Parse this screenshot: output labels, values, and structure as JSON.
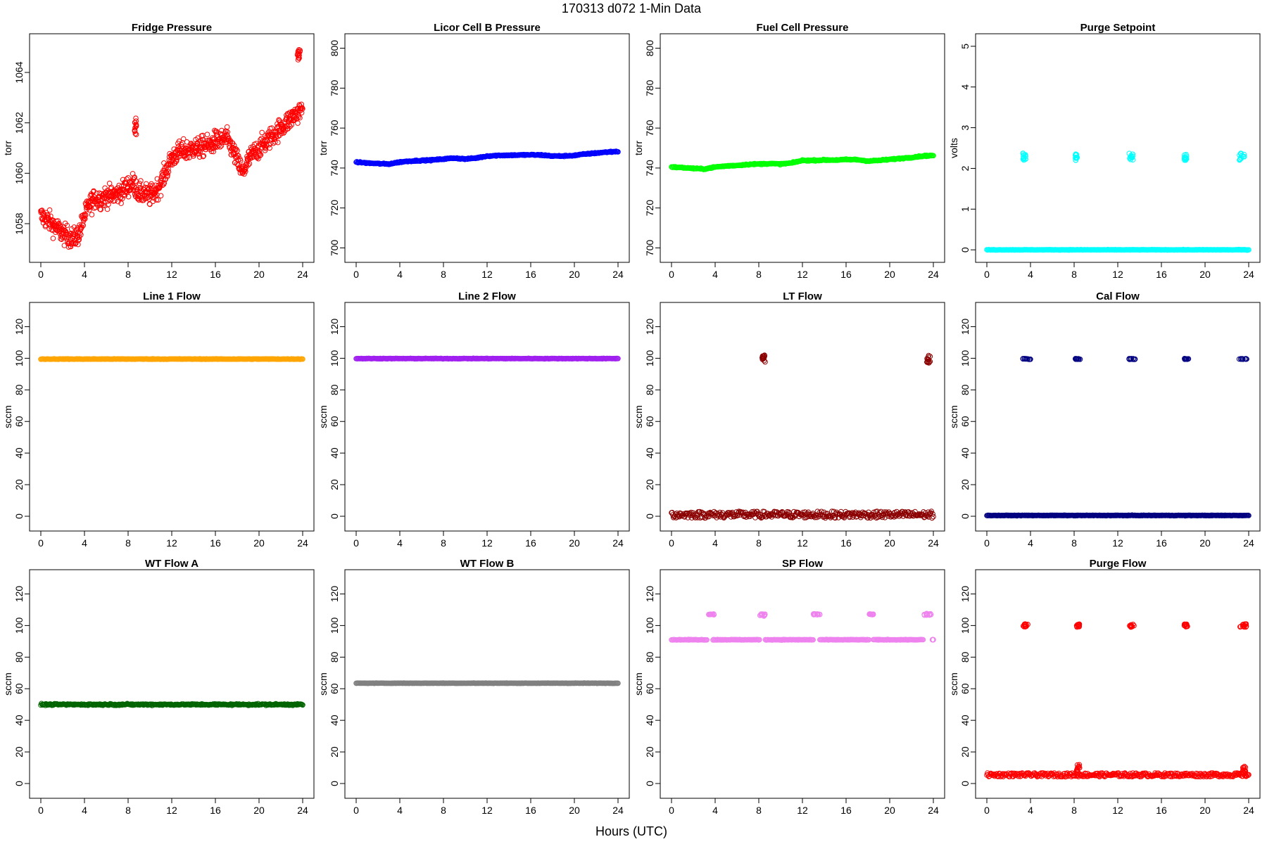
{
  "figure": {
    "title": "170313    d072    1-Min Data",
    "xlabel": "Hours (UTC)"
  },
  "chart_data": [
    {
      "type": "scatter",
      "title": "Fridge Pressure",
      "ylabel": "torr",
      "color": "#ff0000",
      "xlim": [
        0,
        24
      ],
      "ylim": [
        1056.8,
        1065.2
      ],
      "xticks": [
        0,
        4,
        8,
        12,
        16,
        20,
        24
      ],
      "yticks": [
        1058,
        1060,
        1062,
        1064
      ],
      "series": [
        {
          "style": "random-walk",
          "x": [
            0,
            0.5,
            1,
            1.5,
            2,
            2.5,
            3,
            3.5,
            4,
            4.5,
            5,
            5.5,
            6,
            6.5,
            7,
            7.5,
            8,
            8.5,
            9,
            9.5,
            10,
            10.5,
            11,
            11.5,
            12,
            12.5,
            13,
            13.5,
            14,
            14.5,
            15,
            15.5,
            16,
            16.5,
            17,
            17.5,
            18,
            18.5,
            19,
            19.5,
            20,
            20.5,
            21,
            21.5,
            22,
            22.5,
            23,
            23.5,
            24
          ],
          "y": [
            1058.3,
            1058.2,
            1058.0,
            1057.8,
            1057.6,
            1057.5,
            1057.4,
            1057.6,
            1058.3,
            1058.8,
            1059.0,
            1059.0,
            1059.1,
            1059.1,
            1059.2,
            1059.3,
            1059.5,
            1059.6,
            1059.2,
            1059.2,
            1059.1,
            1059.3,
            1059.6,
            1060.1,
            1060.6,
            1060.8,
            1060.9,
            1060.9,
            1061.0,
            1061.0,
            1061.1,
            1061.1,
            1061.3,
            1061.3,
            1061.4,
            1061.0,
            1060.5,
            1060.0,
            1060.5,
            1060.8,
            1061.0,
            1061.2,
            1061.4,
            1061.6,
            1061.8,
            1062.0,
            1062.2,
            1062.4,
            1062.5
          ],
          "spread": 0.7
        },
        {
          "style": "cluster",
          "x": [
            8.6,
            8.75
          ],
          "y": [
            1061.5,
            1062.2
          ]
        },
        {
          "style": "cluster",
          "x": [
            23.5,
            23.8
          ],
          "y": [
            1064.5,
            1064.9
          ]
        }
      ]
    },
    {
      "type": "scatter",
      "title": "Licor Cell B Pressure",
      "ylabel": "torr",
      "color": "#0000ff",
      "xlim": [
        0,
        24
      ],
      "ylim": [
        697,
        803
      ],
      "xticks": [
        0,
        4,
        8,
        12,
        16,
        20,
        24
      ],
      "yticks": [
        700,
        720,
        740,
        760,
        780,
        800
      ],
      "series": [
        {
          "style": "dense",
          "x": [
            0,
            1,
            2,
            3,
            4,
            5,
            6,
            7,
            8,
            9,
            10,
            11,
            12,
            13,
            14,
            15,
            16,
            17,
            18,
            19,
            20,
            21,
            22,
            23,
            24
          ],
          "y": [
            743,
            742.5,
            742.2,
            742.0,
            743.0,
            743.5,
            743.8,
            744.0,
            744.5,
            745.0,
            744.5,
            745.0,
            746.0,
            746.3,
            746.4,
            746.5,
            746.6,
            746.5,
            746.0,
            746.0,
            746.3,
            747.0,
            747.5,
            748.0,
            748.3
          ],
          "spread": 0.5
        }
      ]
    },
    {
      "type": "scatter",
      "title": "Fuel Cell Pressure",
      "ylabel": "torr",
      "color": "#00ff00",
      "xlim": [
        0,
        24
      ],
      "ylim": [
        697,
        803
      ],
      "xticks": [
        0,
        4,
        8,
        12,
        16,
        20,
        24
      ],
      "yticks": [
        700,
        720,
        740,
        760,
        780,
        800
      ],
      "series": [
        {
          "style": "dense",
          "x": [
            0,
            1,
            2,
            3,
            4,
            5,
            6,
            7,
            8,
            9,
            10,
            11,
            12,
            13,
            14,
            15,
            16,
            17,
            18,
            19,
            20,
            21,
            22,
            23,
            24
          ],
          "y": [
            740.5,
            740.2,
            739.8,
            739.5,
            740.5,
            741.0,
            741.3,
            741.8,
            742.0,
            742.2,
            742.0,
            742.5,
            743.8,
            743.8,
            744.0,
            744.0,
            744.2,
            744.2,
            743.5,
            743.8,
            744.3,
            744.8,
            745.3,
            746.0,
            746.3
          ],
          "spread": 0.5
        }
      ]
    },
    {
      "type": "scatter",
      "title": "Purge Setpoint",
      "ylabel": "volts",
      "color": "#00ffff",
      "xlim": [
        0,
        24
      ],
      "ylim": [
        -0.1,
        5.1
      ],
      "xticks": [
        0,
        4,
        8,
        12,
        16,
        20,
        24
      ],
      "yticks": [
        0,
        1,
        2,
        3,
        4,
        5
      ],
      "series": [
        {
          "style": "dense",
          "x": [
            0,
            24
          ],
          "y": [
            0,
            0
          ],
          "spread": 0.01
        },
        {
          "style": "cluster",
          "x": [
            3.3,
            3.6
          ],
          "y": [
            2.2,
            2.38
          ]
        },
        {
          "style": "cluster",
          "x": [
            8.1,
            8.3
          ],
          "y": [
            2.2,
            2.35
          ]
        },
        {
          "style": "cluster",
          "x": [
            13.0,
            13.4
          ],
          "y": [
            2.2,
            2.38
          ]
        },
        {
          "style": "cluster",
          "x": [
            18.1,
            18.3
          ],
          "y": [
            2.2,
            2.35
          ]
        },
        {
          "style": "cluster",
          "x": [
            23.1,
            23.6
          ],
          "y": [
            2.2,
            2.38
          ]
        }
      ]
    },
    {
      "type": "scatter",
      "title": "Line 1 Flow",
      "ylabel": "sccm",
      "color": "#ffa500",
      "xlim": [
        0,
        24
      ],
      "ylim": [
        -4,
        130
      ],
      "xticks": [
        0,
        4,
        8,
        12,
        16,
        20,
        24
      ],
      "yticks": [
        0,
        20,
        40,
        60,
        80,
        100,
        120
      ],
      "series": [
        {
          "style": "dense",
          "x": [
            0,
            24
          ],
          "y": [
            99.5,
            99.5
          ],
          "spread": 0.3
        }
      ]
    },
    {
      "type": "scatter",
      "title": "Line 2 Flow",
      "ylabel": "sccm",
      "color": "#a020f0",
      "xlim": [
        0,
        24
      ],
      "ylim": [
        -4,
        130
      ],
      "xticks": [
        0,
        4,
        8,
        12,
        16,
        20,
        24
      ],
      "yticks": [
        0,
        20,
        40,
        60,
        80,
        100,
        120
      ],
      "series": [
        {
          "style": "dense",
          "x": [
            0,
            24
          ],
          "y": [
            99.8,
            99.8
          ],
          "spread": 0.3
        }
      ]
    },
    {
      "type": "scatter",
      "title": "LT Flow",
      "ylabel": "sccm",
      "color": "#8b0000",
      "xlim": [
        0,
        24
      ],
      "ylim": [
        -4,
        130
      ],
      "xticks": [
        0,
        4,
        8,
        12,
        16,
        20,
        24
      ],
      "yticks": [
        0,
        20,
        40,
        60,
        80,
        100,
        120
      ],
      "series": [
        {
          "style": "noisy",
          "x": [
            0,
            24
          ],
          "y": [
            1,
            1
          ],
          "spread": 3.5
        },
        {
          "style": "cluster",
          "x": [
            8.3,
            8.6
          ],
          "y": [
            97,
            102
          ]
        },
        {
          "style": "cluster",
          "x": [
            23.4,
            23.7
          ],
          "y": [
            97,
            102
          ]
        }
      ]
    },
    {
      "type": "scatter",
      "title": "Cal Flow",
      "ylabel": "sccm",
      "color": "#000080",
      "xlim": [
        0,
        24
      ],
      "ylim": [
        -4,
        130
      ],
      "xticks": [
        0,
        4,
        8,
        12,
        16,
        20,
        24
      ],
      "yticks": [
        0,
        20,
        40,
        60,
        80,
        100,
        120
      ],
      "series": [
        {
          "style": "dense",
          "x": [
            0,
            24
          ],
          "y": [
            0.5,
            0.5
          ],
          "spread": 0.3
        },
        {
          "style": "cluster",
          "x": [
            3.3,
            4.0
          ],
          "y": [
            99.3,
            99.8
          ]
        },
        {
          "style": "cluster",
          "x": [
            8.1,
            8.6
          ],
          "y": [
            99.3,
            99.8
          ]
        },
        {
          "style": "cluster",
          "x": [
            13.0,
            13.6
          ],
          "y": [
            99.3,
            99.8
          ]
        },
        {
          "style": "cluster",
          "x": [
            18.1,
            18.5
          ],
          "y": [
            99.3,
            99.8
          ]
        },
        {
          "style": "cluster",
          "x": [
            23.1,
            23.9
          ],
          "y": [
            99.3,
            99.8
          ]
        }
      ]
    },
    {
      "type": "scatter",
      "title": "WT Flow A",
      "ylabel": "sccm",
      "color": "#006400",
      "xlim": [
        0,
        24
      ],
      "ylim": [
        -4,
        130
      ],
      "xticks": [
        0,
        4,
        8,
        12,
        16,
        20,
        24
      ],
      "yticks": [
        0,
        20,
        40,
        60,
        80,
        100,
        120
      ],
      "series": [
        {
          "style": "dense",
          "x": [
            0,
            24
          ],
          "y": [
            50,
            50
          ],
          "spread": 0.8
        }
      ]
    },
    {
      "type": "scatter",
      "title": "WT Flow B",
      "ylabel": "sccm",
      "color": "#808080",
      "xlim": [
        0,
        24
      ],
      "ylim": [
        -4,
        130
      ],
      "xticks": [
        0,
        4,
        8,
        12,
        16,
        20,
        24
      ],
      "yticks": [
        0,
        20,
        40,
        60,
        80,
        100,
        120
      ],
      "series": [
        {
          "style": "dense",
          "x": [
            0,
            24
          ],
          "y": [
            63.5,
            63.5
          ],
          "spread": 0.2
        }
      ]
    },
    {
      "type": "scatter",
      "title": "SP Flow",
      "ylabel": "sccm",
      "color": "#ee82ee",
      "xlim": [
        0,
        24
      ],
      "ylim": [
        -4,
        130
      ],
      "xticks": [
        0,
        4,
        8,
        12,
        16,
        20,
        24
      ],
      "yticks": [
        0,
        20,
        40,
        60,
        80,
        100,
        120
      ],
      "series": [
        {
          "style": "dense",
          "x": [
            0,
            3.3
          ],
          "y": [
            91,
            91
          ],
          "spread": 0.3
        },
        {
          "style": "dense",
          "x": [
            3.8,
            8.1
          ],
          "y": [
            91,
            91
          ],
          "spread": 0.3
        },
        {
          "style": "dense",
          "x": [
            8.6,
            13.0
          ],
          "y": [
            91,
            91
          ],
          "spread": 0.3
        },
        {
          "style": "dense",
          "x": [
            13.6,
            18.1
          ],
          "y": [
            91,
            91
          ],
          "spread": 0.3
        },
        {
          "style": "dense",
          "x": [
            18.5,
            23.1
          ],
          "y": [
            91,
            91
          ],
          "spread": 0.3
        },
        {
          "style": "cluster",
          "x": [
            23.9,
            24.0
          ],
          "y": [
            91,
            91
          ]
        },
        {
          "style": "cluster",
          "x": [
            3.3,
            3.9
          ],
          "y": [
            106.8,
            107.4
          ]
        },
        {
          "style": "cluster",
          "x": [
            8.1,
            8.6
          ],
          "y": [
            106.0,
            107.4
          ]
        },
        {
          "style": "cluster",
          "x": [
            13.0,
            13.6
          ],
          "y": [
            106.8,
            107.4
          ]
        },
        {
          "style": "cluster",
          "x": [
            18.1,
            18.5
          ],
          "y": [
            106.8,
            107.4
          ]
        },
        {
          "style": "cluster",
          "x": [
            23.1,
            23.8
          ],
          "y": [
            106.5,
            107.6
          ]
        }
      ]
    },
    {
      "type": "scatter",
      "title": "Purge Flow",
      "ylabel": "sccm",
      "color": "#ff0000",
      "xlim": [
        0,
        24
      ],
      "ylim": [
        -4,
        130
      ],
      "xticks": [
        0,
        4,
        8,
        12,
        16,
        20,
        24
      ],
      "yticks": [
        0,
        20,
        40,
        60,
        80,
        100,
        120
      ],
      "series": [
        {
          "style": "noisy",
          "x": [
            0,
            24
          ],
          "y": [
            5.5,
            5.5
          ],
          "spread": 2.0
        },
        {
          "style": "cluster",
          "x": [
            8.2,
            8.5
          ],
          "y": [
            7,
            12
          ]
        },
        {
          "style": "cluster",
          "x": [
            23.4,
            23.7
          ],
          "y": [
            7,
            11
          ]
        },
        {
          "style": "cluster",
          "x": [
            3.3,
            3.8
          ],
          "y": [
            99,
            101
          ]
        },
        {
          "style": "cluster",
          "x": [
            8.2,
            8.5
          ],
          "y": [
            99,
            101
          ]
        },
        {
          "style": "cluster",
          "x": [
            13.0,
            13.5
          ],
          "y": [
            99,
            101
          ]
        },
        {
          "style": "cluster",
          "x": [
            18.1,
            18.4
          ],
          "y": [
            99,
            101
          ]
        },
        {
          "style": "cluster",
          "x": [
            23.2,
            23.8
          ],
          "y": [
            99,
            101
          ]
        }
      ]
    }
  ]
}
